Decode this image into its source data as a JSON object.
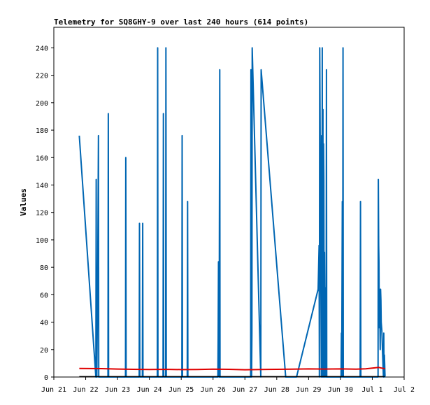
{
  "chart_data": {
    "type": "line",
    "title": "Telemetry for SQ8GHY-9 over last 240 hours (614 points)",
    "xlabel": "",
    "ylabel": "Values",
    "xlim": [
      0,
      11
    ],
    "ylim": [
      0,
      255
    ],
    "x_ticks": [
      {
        "x": 0,
        "label": "Jun 21"
      },
      {
        "x": 1,
        "label": "Jun 22"
      },
      {
        "x": 2,
        "label": "Jun 23"
      },
      {
        "x": 3,
        "label": "Jun 24"
      },
      {
        "x": 4,
        "label": "Jun 25"
      },
      {
        "x": 5,
        "label": "Jun 26"
      },
      {
        "x": 6,
        "label": "Jun 27"
      },
      {
        "x": 7,
        "label": "Jun 28"
      },
      {
        "x": 8,
        "label": "Jun 29"
      },
      {
        "x": 9,
        "label": "Jun 30"
      },
      {
        "x": 10,
        "label": "Jul 1"
      },
      {
        "x": 11,
        "label": "Jul 2"
      }
    ],
    "y_ticks": [
      0,
      20,
      40,
      60,
      80,
      100,
      120,
      140,
      160,
      180,
      200,
      220,
      240
    ],
    "grid": false,
    "series": [
      {
        "color": "#0066b3",
        "x": [
          0.8,
          1.32,
          1.33,
          1.34,
          1.35,
          1.38,
          1.4,
          1.41,
          1.42,
          1.7,
          1.71,
          1.72,
          2.25,
          2.26,
          2.27,
          2.68,
          2.69,
          2.7,
          2.78,
          2.79,
          2.8,
          3.25,
          3.26,
          3.27,
          3.43,
          3.44,
          3.45,
          3.51,
          3.52,
          3.53,
          4.02,
          4.03,
          4.04,
          4.19,
          4.2,
          4.21,
          5.15,
          5.16,
          5.17,
          5.19,
          5.2,
          5.21,
          5.22,
          5.23,
          6.18,
          6.19,
          6.2,
          6.21,
          6.22,
          6.23,
          6.5,
          6.51,
          7.28,
          7.62,
          8.3,
          8.33,
          8.34,
          8.35,
          8.4,
          8.41,
          8.42,
          8.43,
          8.44,
          8.45,
          8.46,
          8.47,
          8.48,
          8.49,
          8.5,
          8.52,
          8.53,
          8.55,
          8.56,
          8.57,
          9.02,
          9.03,
          9.04,
          9.06,
          9.07,
          9.08,
          9.09,
          9.62,
          9.63,
          9.64,
          10.18,
          10.19,
          10.2,
          10.21,
          10.22,
          10.23,
          10.25,
          10.26,
          10.27,
          10.28,
          10.3,
          10.32,
          10.35,
          10.36,
          10.37,
          10.38,
          10.4
        ],
        "y": [
          176,
          0,
          144,
          0,
          0,
          88,
          176,
          0,
          0,
          0,
          192,
          0,
          0,
          160,
          0,
          0,
          112,
          0,
          0,
          112,
          0,
          0,
          240,
          0,
          0,
          192,
          0,
          0,
          240,
          0,
          0,
          176,
          0,
          0,
          128,
          0,
          0,
          28,
          84,
          0,
          112,
          224,
          0,
          0,
          0,
          224,
          0,
          0,
          32,
          240,
          0,
          224,
          0,
          0,
          64,
          96,
          0,
          240,
          0,
          176,
          0,
          240,
          0,
          195,
          0,
          170,
          144,
          0,
          91,
          0,
          65,
          0,
          224,
          0,
          0,
          32,
          0,
          128,
          0,
          240,
          0,
          0,
          128,
          0,
          0,
          144,
          96,
          84,
          36,
          64,
          20,
          64,
          56,
          40,
          34,
          20,
          0,
          32,
          0,
          16,
          0
        ]
      },
      {
        "color": "#e00000",
        "x": [
          0.8,
          1.5,
          2.0,
          2.5,
          3.0,
          3.5,
          4.0,
          4.5,
          5.0,
          5.5,
          6.0,
          6.5,
          7.0,
          7.5,
          8.0,
          8.5,
          9.0,
          9.5,
          9.8,
          10.0,
          10.2,
          10.4
        ],
        "y": [
          6.2,
          6.1,
          5.8,
          5.6,
          5.5,
          5.6,
          5.4,
          5.5,
          5.7,
          5.6,
          5.3,
          5.5,
          5.6,
          5.7,
          5.9,
          5.8,
          5.9,
          5.7,
          6.0,
          6.5,
          7.0,
          6.0
        ]
      },
      {
        "color": "#000000",
        "x": [
          0.8,
          10.4
        ],
        "y": [
          0.3,
          0.3
        ]
      }
    ]
  }
}
